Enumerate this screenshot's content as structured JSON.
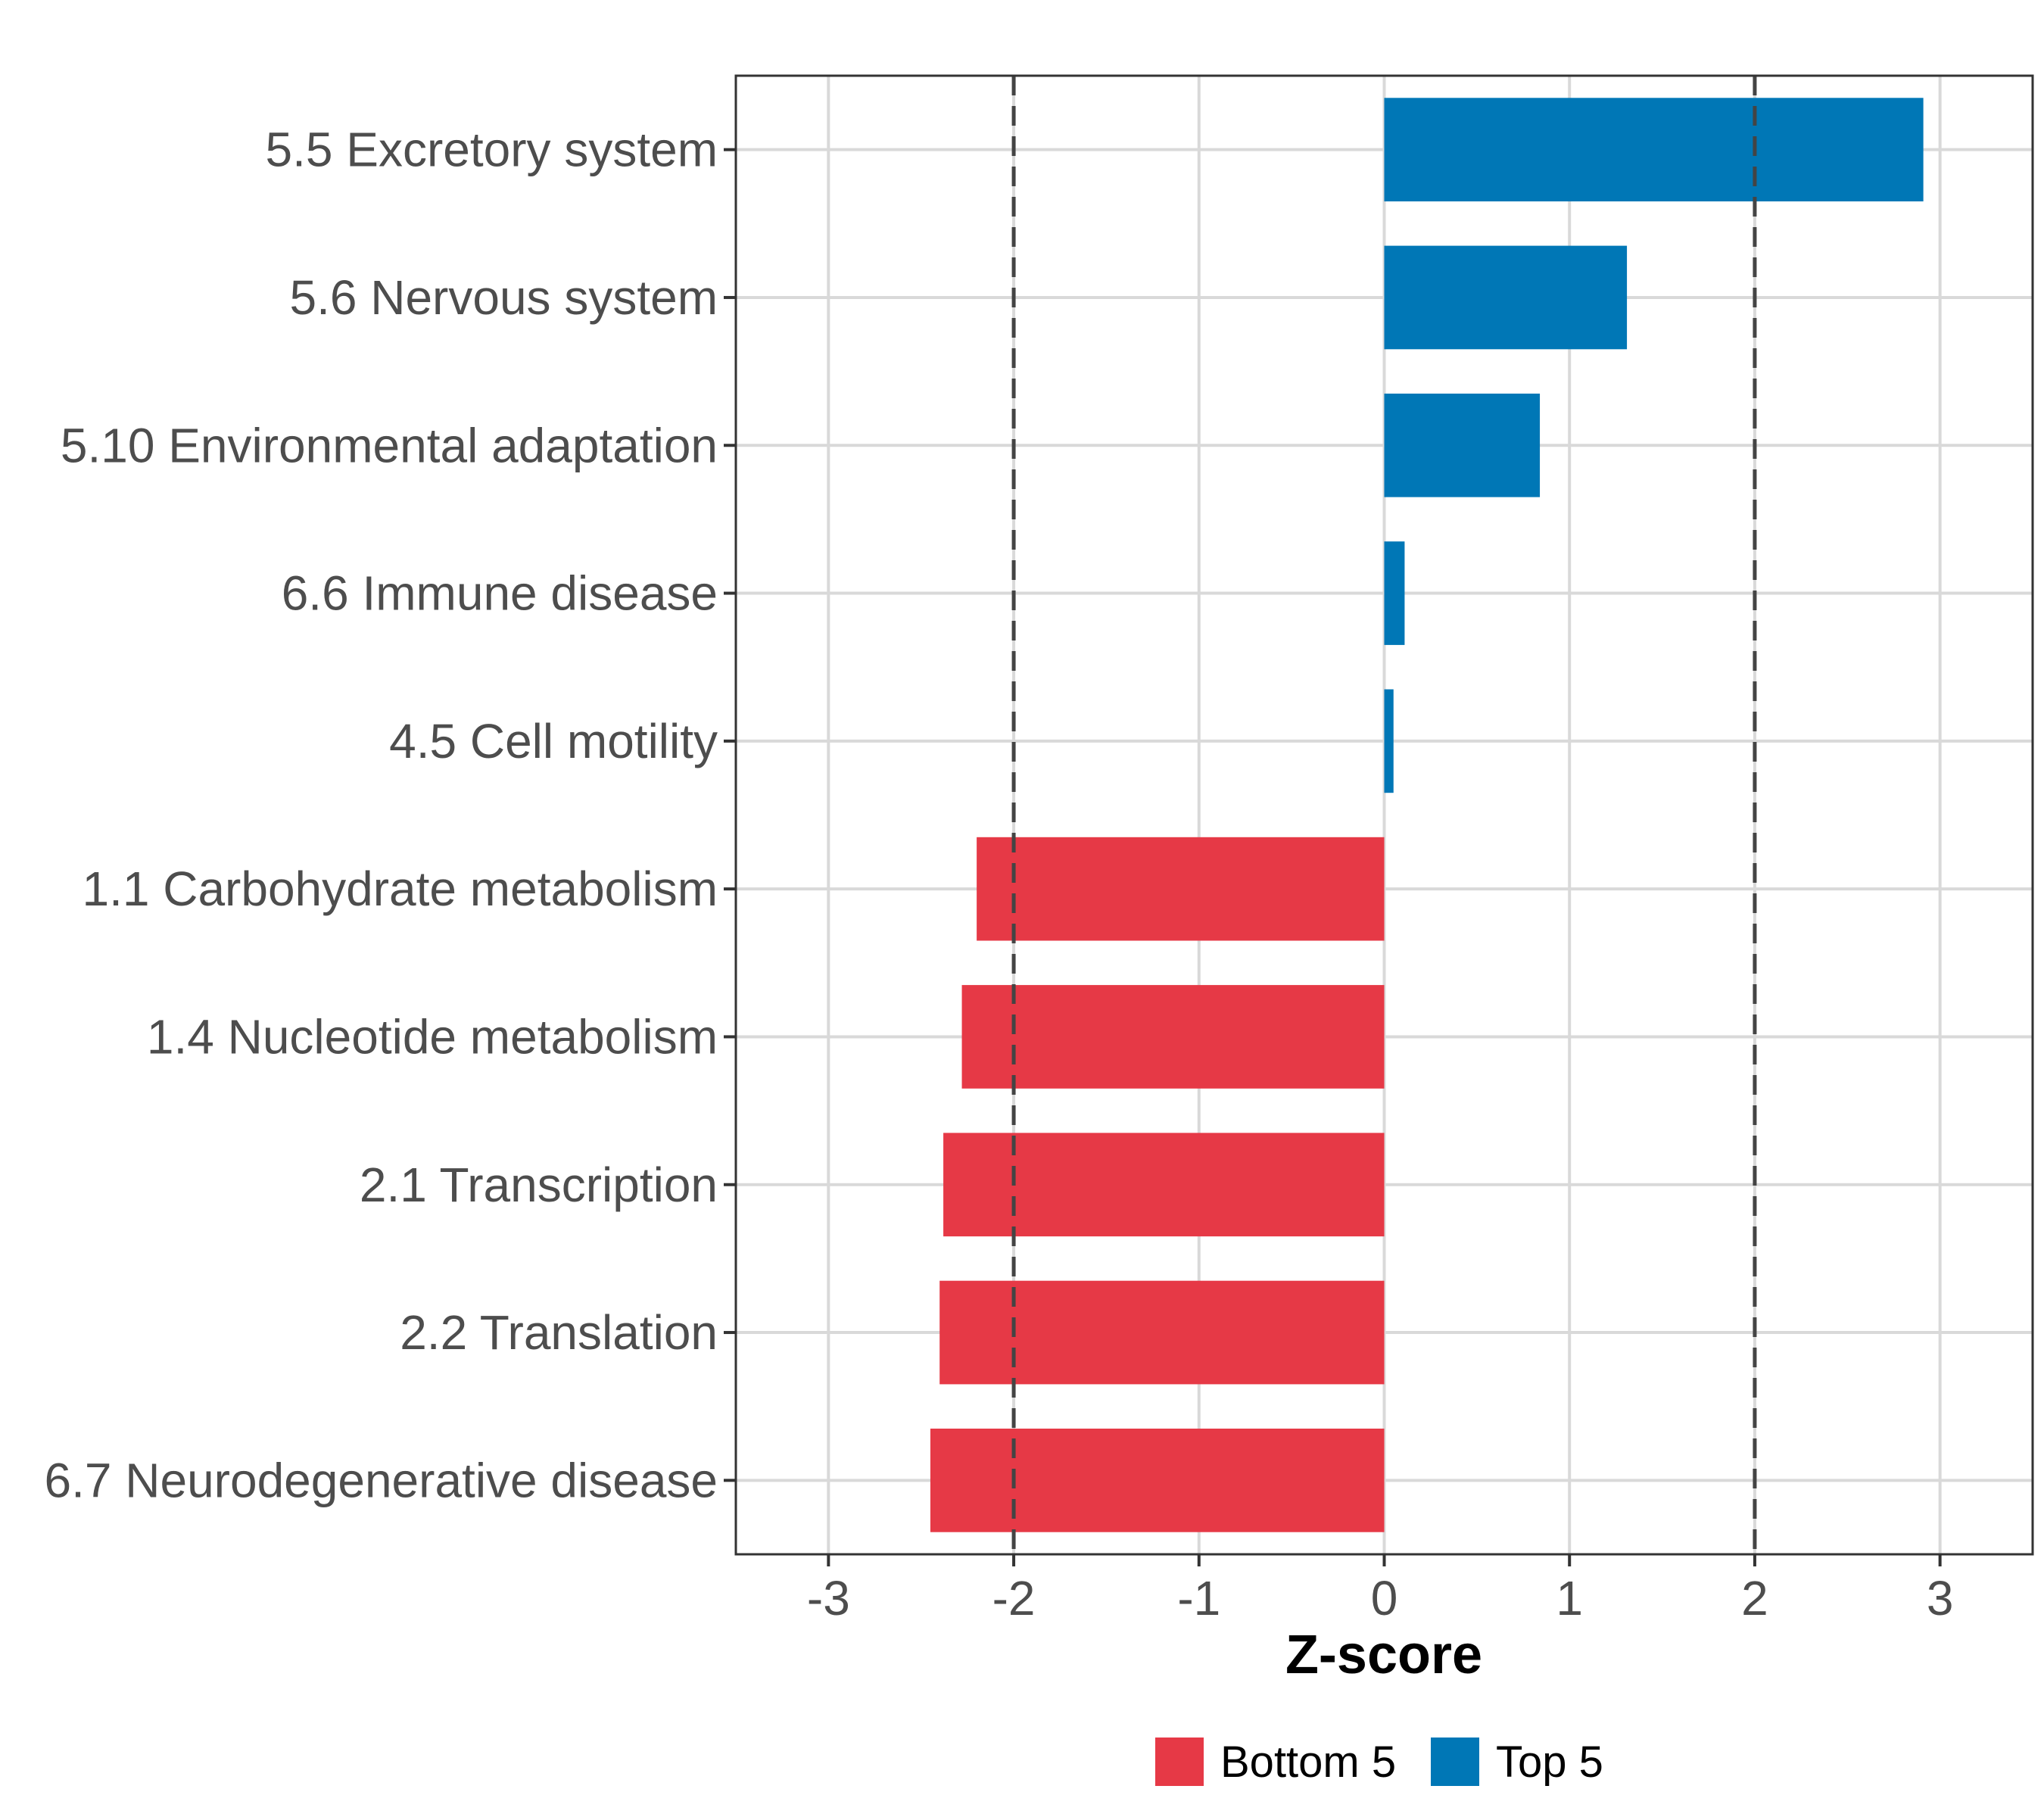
{
  "chart_data": {
    "type": "bar",
    "orientation": "horizontal",
    "title": "",
    "xlabel": "Z-score",
    "ylabel": "",
    "xlim": [
      -3.5,
      3.5
    ],
    "xticks": [
      -3,
      -2,
      -1,
      0,
      1,
      2,
      3
    ],
    "xtick_labels": [
      "-3",
      "-2",
      "-1",
      "0",
      "1",
      "2",
      "3"
    ],
    "reference_lines": [
      -2,
      2
    ],
    "grid": true,
    "legend_position": "bottom",
    "categories": [
      "5.5 Excretory system",
      "5.6 Nervous system",
      "5.10 Environmental adaptation",
      "6.6 Immune disease",
      "4.5 Cell motility",
      "1.1 Carbohydrate metabolism",
      "1.4 Nucleotide metabolism",
      "2.1 Transcription",
      "2.2 Translation",
      "6.7 Neurodegenerative disease"
    ],
    "values": [
      2.91,
      1.31,
      0.84,
      0.11,
      0.05,
      -2.2,
      -2.28,
      -2.38,
      -2.4,
      -2.45
    ],
    "groups": [
      "Top 5",
      "Top 5",
      "Top 5",
      "Top 5",
      "Top 5",
      "Bottom 5",
      "Bottom 5",
      "Bottom 5",
      "Bottom 5",
      "Bottom 5"
    ],
    "legend": [
      {
        "name": "Bottom 5",
        "color": "#E63946"
      },
      {
        "name": "Top 5",
        "color": "#0077B6"
      }
    ]
  }
}
